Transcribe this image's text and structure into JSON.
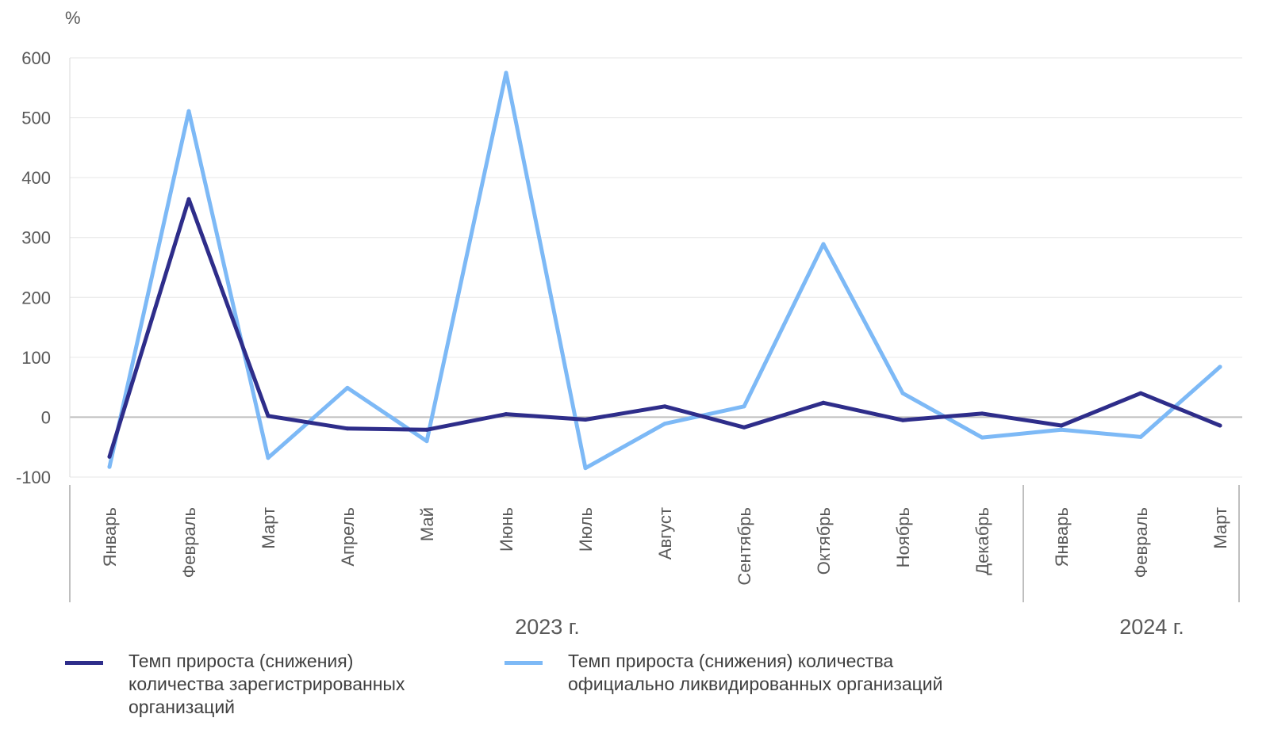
{
  "chart_data": {
    "type": "line",
    "unit_label": "%",
    "ylim": [
      -100,
      600
    ],
    "yticks": [
      600,
      500,
      400,
      300,
      200,
      100,
      0,
      -100
    ],
    "categories": [
      "Январь",
      "Февраль",
      "Март",
      "Апрель",
      "Май",
      "Июнь",
      "Июль",
      "Август",
      "Сентябрь",
      "Октябрь",
      "Ноябрь",
      "Декабрь",
      "Январь",
      "Февраль",
      "Март"
    ],
    "groups": [
      {
        "label": "2023 г.",
        "count": 12
      },
      {
        "label": "2024 г.",
        "count": 3
      }
    ],
    "grid": true,
    "legend_position": "bottom",
    "series": [
      {
        "name": "Темп прироста (снижения) количества зарегистрированных организаций",
        "color": "#2e2d8a",
        "values": [
          -66,
          364,
          2,
          -19,
          -21,
          5,
          -4,
          18,
          -17,
          24,
          -5,
          6,
          -14,
          40,
          -14
        ]
      },
      {
        "name": "Темп прироста (снижения) количества официально ликвидированных организаций",
        "color": "#7db9f6",
        "values": [
          -83,
          511,
          -68,
          49,
          -40,
          575,
          -85,
          -11,
          18,
          289,
          40,
          -34,
          -21,
          -33,
          84
        ]
      }
    ]
  }
}
